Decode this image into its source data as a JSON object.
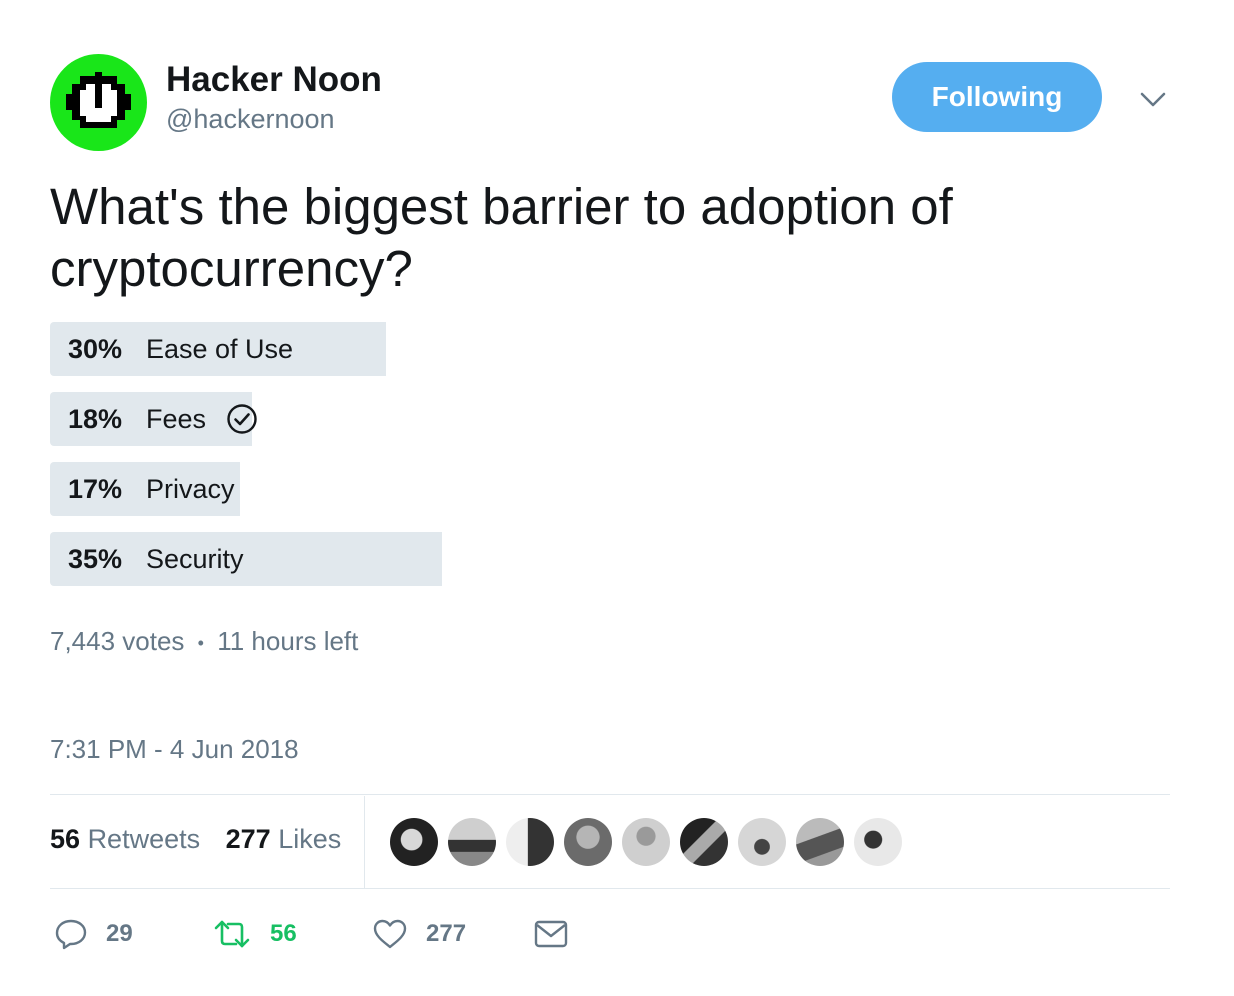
{
  "account": {
    "name": "Hacker Noon",
    "handle": "@hackernoon",
    "follow_label": "Following"
  },
  "tweet": {
    "question": "What's the biggest barrier to adoption of cryptocurrency?",
    "poll": [
      {
        "percent": "30%",
        "label": "Ease of Use",
        "value": 30,
        "chosen": false
      },
      {
        "percent": "18%",
        "label": "Fees",
        "value": 18,
        "chosen": true
      },
      {
        "percent": "17%",
        "label": "Privacy",
        "value": 17,
        "chosen": false
      },
      {
        "percent": "35%",
        "label": "Security",
        "value": 35,
        "chosen": false
      }
    ],
    "votes": "7,443 votes",
    "separator": "•",
    "time_left": "11 hours left",
    "timestamp": "7:31 PM - 4 Jun 2018"
  },
  "stats": {
    "retweets_count": "56",
    "retweets_label": "Retweets",
    "likes_count": "277",
    "likes_label": "Likes"
  },
  "actions": {
    "reply_count": "29",
    "retweet_count": "56",
    "like_count": "277"
  },
  "colors": {
    "accent": "#55aef0",
    "retweet_green": "#17bf63",
    "bar": "#e1e8ed",
    "muted": "#657786",
    "avatar_green": "#19e619"
  },
  "icons": [
    "chevron-down-icon",
    "check-circle-icon",
    "reply-icon",
    "retweet-icon",
    "heart-icon",
    "envelope-icon"
  ]
}
